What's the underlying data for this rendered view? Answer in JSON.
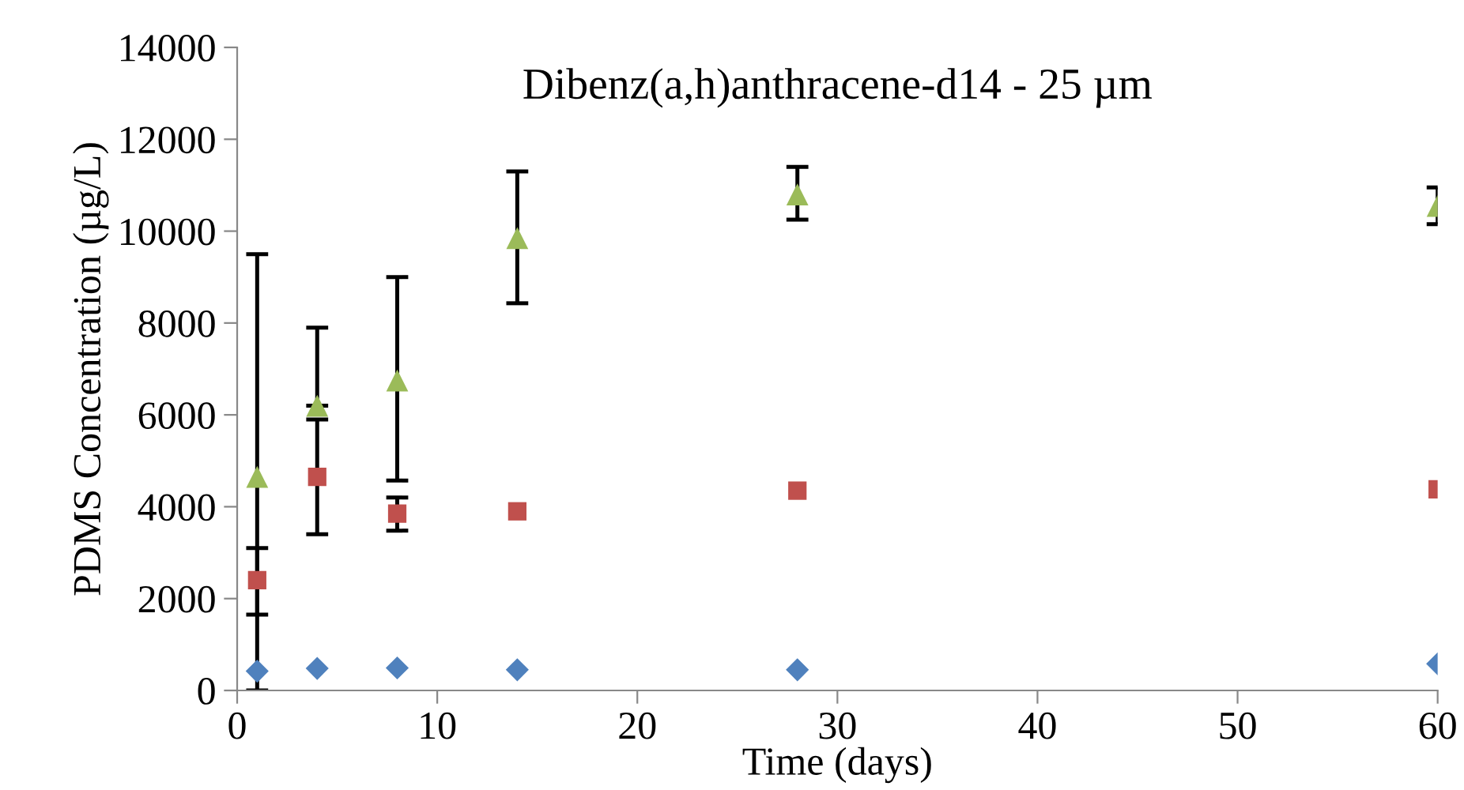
{
  "chart_data": {
    "type": "scatter",
    "title": "Dibenz(a,h)anthracene-d14 - 25 µm",
    "xlabel": "Time (days)",
    "ylabel": "PDMS Concentration (µg/L)",
    "x": [
      1,
      4,
      8,
      14,
      28,
      60
    ],
    "series": [
      {
        "color": "#4f81bd",
        "marker": "diamond",
        "values": [
          420,
          480,
          490,
          450,
          450,
          580
        ]
      },
      {
        "color": "#c0504d",
        "marker": "square",
        "values": [
          2400,
          4650,
          3850,
          3900,
          4350,
          4380
        ],
        "errors": [
          [
            1650,
            3100
          ],
          [
            3400,
            5900
          ],
          [
            3480,
            4200
          ],
          null,
          null,
          null
        ]
      },
      {
        "color": "#9bbb59",
        "marker": "triangle",
        "values": [
          4650,
          6200,
          6750,
          9850,
          10800,
          10550
        ],
        "errors": [
          [
            0,
            9500
          ],
          [
            6200,
            7900
          ],
          [
            4570,
            9000
          ],
          [
            8430,
            11300
          ],
          [
            10250,
            11400
          ],
          [
            10150,
            10950
          ]
        ]
      }
    ],
    "xlim": [
      0,
      60
    ],
    "xticks": [
      0,
      10,
      20,
      30,
      40,
      50,
      60
    ],
    "ylim": [
      0,
      14000
    ],
    "yticks": [
      0,
      2000,
      4000,
      6000,
      8000,
      10000,
      12000,
      14000
    ],
    "grid": false,
    "legend": false
  }
}
